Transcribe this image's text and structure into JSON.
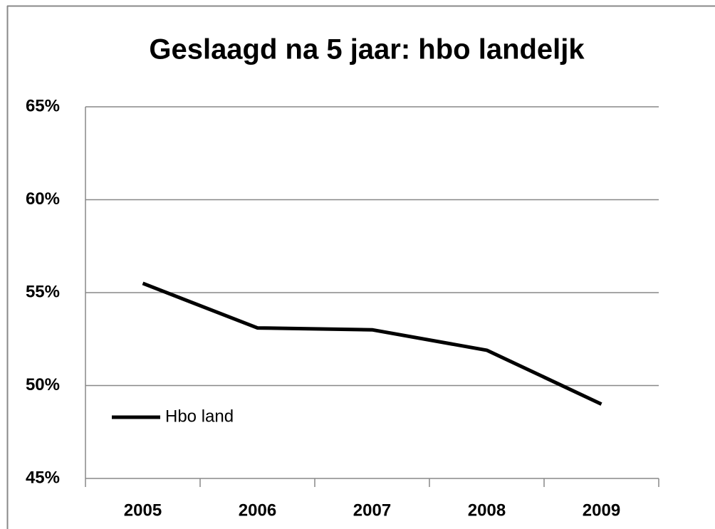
{
  "chart_data": {
    "type": "line",
    "title": "Geslaagd na 5 jaar: hbo landeljk",
    "categories": [
      "2005",
      "2006",
      "2007",
      "2008",
      "2009"
    ],
    "series": [
      {
        "name": "Hbo land",
        "color": "#000000",
        "values": [
          55.5,
          53.1,
          53.0,
          51.9,
          49.0
        ]
      }
    ],
    "ylim": [
      45,
      65
    ],
    "yticks": [
      {
        "value": 45,
        "label": "45%"
      },
      {
        "value": 50,
        "label": "50%"
      },
      {
        "value": 55,
        "label": "55%"
      },
      {
        "value": 60,
        "label": "60%"
      },
      {
        "value": 65,
        "label": "65%"
      }
    ],
    "grid": true,
    "legend": "lower left"
  }
}
